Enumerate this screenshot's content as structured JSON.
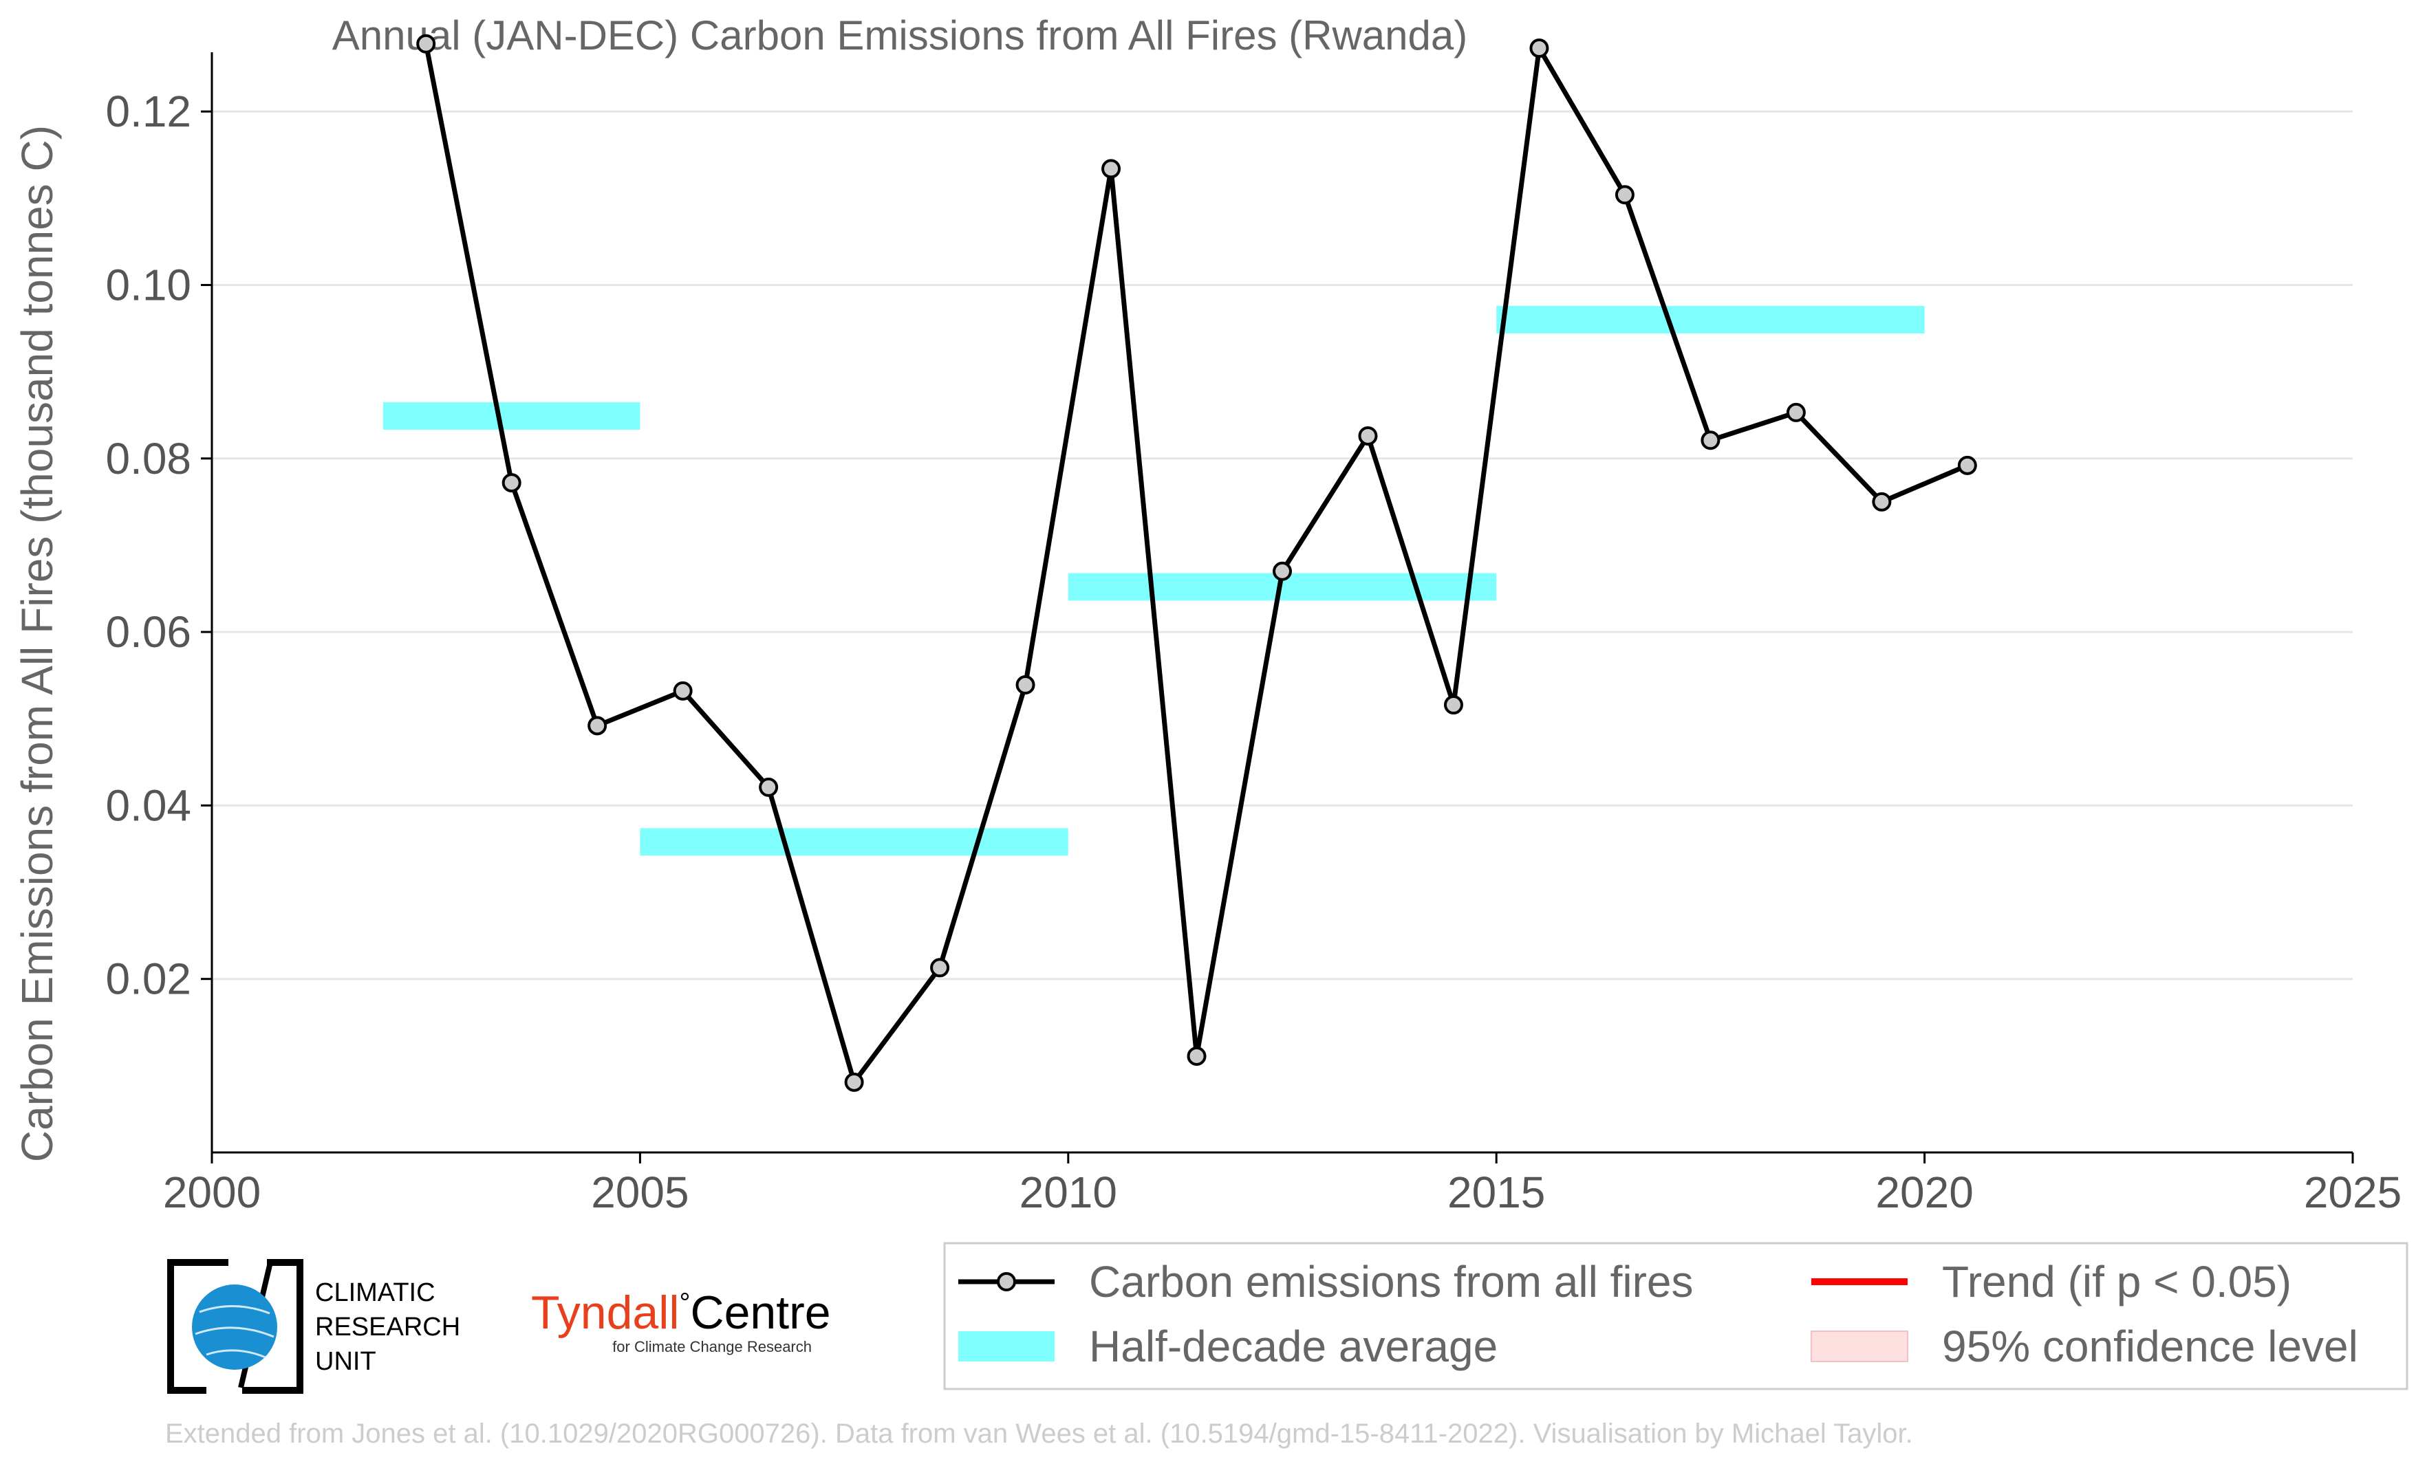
{
  "chart_data": {
    "type": "line",
    "title": "Annual (JAN-DEC) Carbon Emissions from All Fires (Rwanda)",
    "xlabel": "",
    "ylabel": "Carbon Emissions from All Fires (thousand tonnes C)",
    "xlim": [
      2000,
      2025
    ],
    "ylim": [
      0,
      0.13
    ],
    "x_ticks": [
      "2000",
      "2005",
      "2010",
      "2015",
      "2020",
      "2025"
    ],
    "y_ticks": [
      "0.02",
      "0.04",
      "0.06",
      "0.08",
      "0.10",
      "0.12"
    ],
    "grid": "horizontal",
    "series": [
      {
        "name": "Carbon emissions from all fires",
        "color": "#000000",
        "marker_fill": "#cccccc",
        "x": [
          2002.5,
          2003.5,
          2004.5,
          2005.5,
          2006.5,
          2007.5,
          2008.5,
          2009.5,
          2010.5,
          2011.5,
          2012.5,
          2013.5,
          2014.5,
          2015.5,
          2016.5,
          2017.5,
          2018.5,
          2019.5,
          2020.5
        ],
        "y": [
          0.1278,
          0.0772,
          0.0492,
          0.0532,
          0.0421,
          0.0081,
          0.0213,
          0.0539,
          0.1134,
          0.0111,
          0.067,
          0.0826,
          0.0516,
          0.1273,
          0.1104,
          0.0821,
          0.0853,
          0.075,
          0.0792
        ]
      },
      {
        "name": "Half-decade average",
        "color": "#80ffff",
        "segments": [
          {
            "x0": 2002,
            "x1": 2005,
            "y": 0.0849
          },
          {
            "x0": 2005,
            "x1": 2010,
            "y": 0.0358
          },
          {
            "x0": 2010,
            "x1": 2015,
            "y": 0.0652
          },
          {
            "x0": 2015,
            "x1": 2020,
            "y": 0.096
          }
        ]
      }
    ],
    "legend": {
      "placement": "bottom-right",
      "entries": [
        {
          "label": "Carbon emissions from all fires",
          "color": "#000000"
        },
        {
          "label": "Trend (if p < 0.05)",
          "color": "#ff0000"
        },
        {
          "label": "Half-decade average",
          "color": "#80ffff"
        },
        {
          "label": "95% confidence level",
          "color": "#ffe0e0"
        }
      ]
    }
  },
  "logos": {
    "cru_line1": "CLIMATIC",
    "cru_line2": "RESEARCH",
    "cru_line3": "UNIT",
    "tyndall_main": "Tyndall",
    "tyndall_degree": "°",
    "tyndall_centre": "Centre",
    "tyndall_sub": "for Climate Change Research"
  },
  "credit": "Extended from Jones et al. (10.1029/2020RG000726). Data from van Wees et al. (10.5194/gmd-15-8411-2022). Visualisation by Michael Taylor."
}
